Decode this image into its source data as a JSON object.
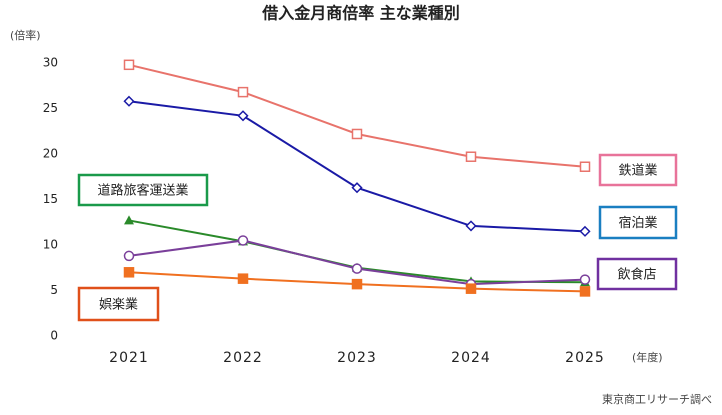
{
  "chart_data": {
    "type": "line",
    "title": "借入金月商倍率 主な業種別",
    "y_label": "(倍率)",
    "x_label": "(年度)",
    "source": "東京商工リサーチ調べ",
    "categories": [
      "2021",
      "2022",
      "2023",
      "2024",
      "2025"
    ],
    "ylim": [
      0,
      30
    ],
    "yticks": [
      0,
      5,
      10,
      15,
      20,
      25,
      30
    ],
    "grid": false,
    "series": [
      {
        "name": "鉄道業",
        "color": "#e8736b",
        "label_color": "#e8739a",
        "marker": "square-open",
        "values": [
          29.8,
          26.8,
          22.2,
          19.7,
          18.6
        ]
      },
      {
        "name": "宿泊業",
        "color": "#1a1aa6",
        "label_color": "#1a7fc1",
        "marker": "diamond-open",
        "values": [
          25.8,
          24.2,
          16.3,
          12.1,
          11.5
        ]
      },
      {
        "name": "道路旅客運送業",
        "color": "#2a8a2a",
        "label_color": "#1a9a4a",
        "marker": "triangle",
        "values": [
          12.7,
          10.4,
          7.5,
          6.0,
          5.9
        ]
      },
      {
        "name": "飲食店",
        "color": "#7a3f9a",
        "label_color": "#7030a0",
        "marker": "circle-open",
        "values": [
          8.8,
          10.5,
          7.4,
          5.7,
          6.2
        ]
      },
      {
        "name": "娯楽業",
        "color": "#f07020",
        "label_color": "#e0501a",
        "marker": "square",
        "values": [
          7.0,
          6.3,
          5.7,
          5.2,
          4.9
        ]
      }
    ]
  }
}
